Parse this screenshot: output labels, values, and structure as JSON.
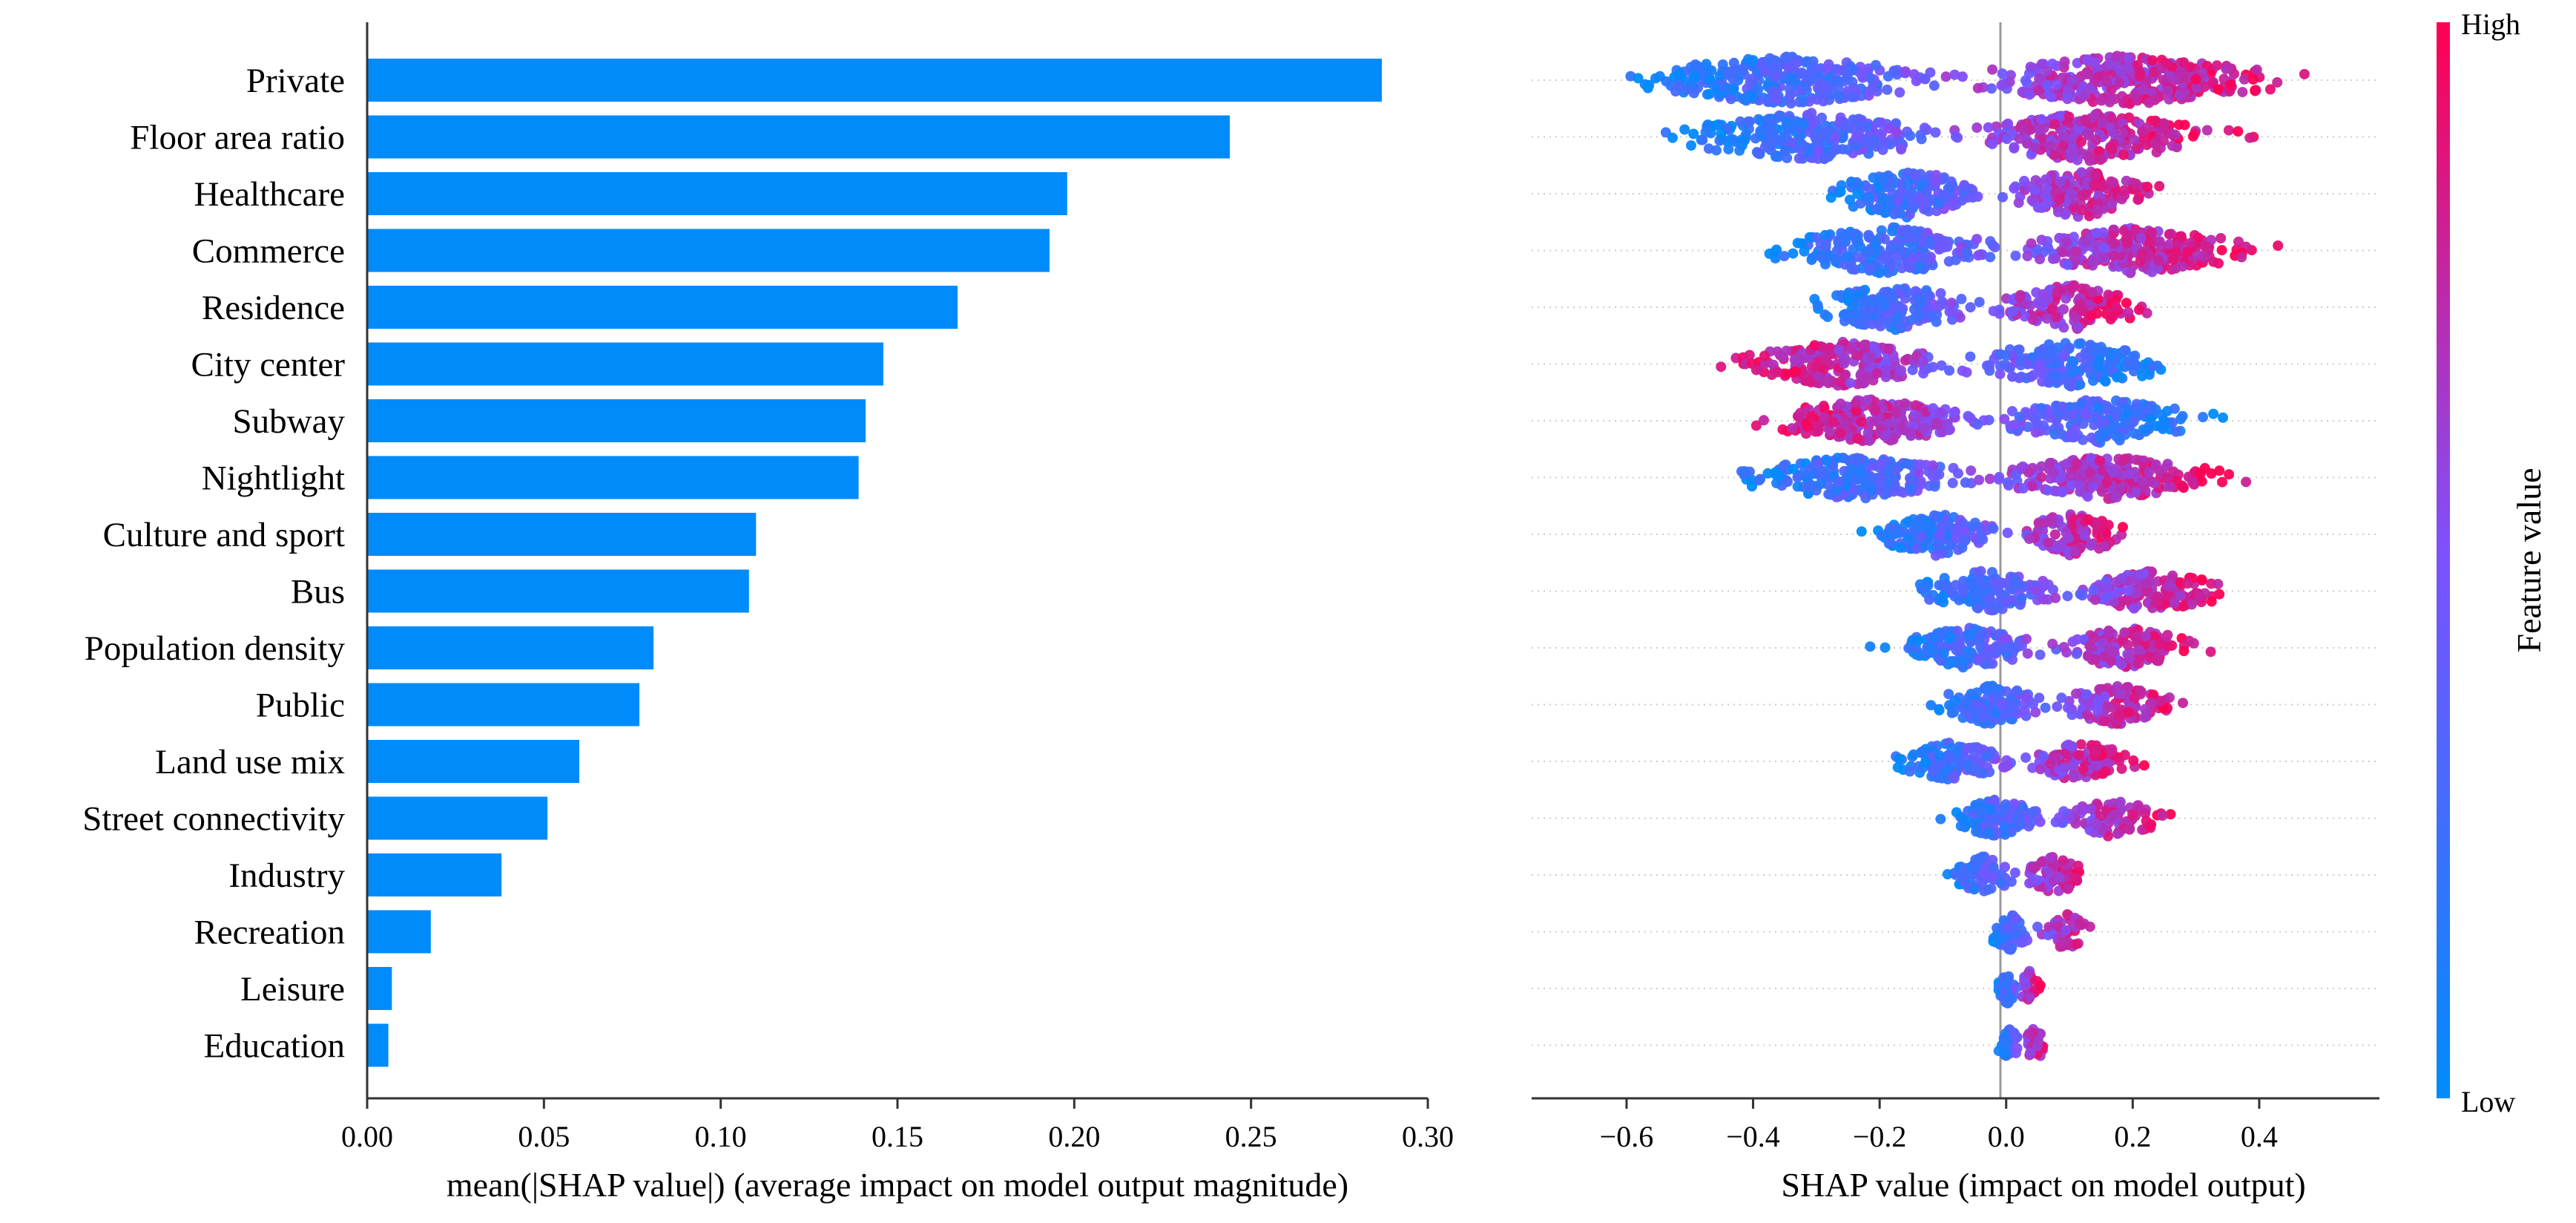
{
  "chart_data": [
    {
      "type": "bar",
      "orientation": "horizontal",
      "categories": [
        "Private",
        "Floor area ratio",
        "Healthcare",
        "Commerce",
        "Residence",
        "City center",
        "Subway",
        "Nightlight",
        "Culture and sport",
        "Bus",
        "Population density",
        "Public",
        "Land use mix",
        "Street connectivity",
        "Industry",
        "Recreation",
        "Leisure",
        "Education"
      ],
      "values": [
        0.287,
        0.244,
        0.198,
        0.193,
        0.167,
        0.146,
        0.141,
        0.139,
        0.11,
        0.108,
        0.081,
        0.077,
        0.06,
        0.051,
        0.038,
        0.018,
        0.007,
        0.006
      ],
      "xlabel": "mean(|SHAP value|) (average impact on model output magnitude)",
      "xlim": [
        0,
        0.3
      ],
      "xticks": [
        "0.00",
        "0.05",
        "0.10",
        "0.15",
        "0.20",
        "0.25",
        "0.30"
      ],
      "color": "#008bfb",
      "grid": false
    },
    {
      "type": "scatter",
      "style": "beeswarm",
      "categories": [
        "Private",
        "Floor area ratio",
        "Healthcare",
        "Commerce",
        "Residence",
        "City center",
        "Subway",
        "Nightlight",
        "Culture and sport",
        "Bus",
        "Population density",
        "Public",
        "Land use mix",
        "Street connectivity",
        "Industry",
        "Recreation",
        "Leisure",
        "Education"
      ],
      "xlabel": "SHAP value (impact on model output)",
      "xlim": [
        -0.75,
        0.59
      ],
      "xticks": [
        "−0.6",
        "−0.4",
        "−0.2",
        "0.0",
        "0.2",
        "0.4"
      ],
      "xtick_values": [
        -0.6,
        -0.4,
        -0.2,
        0.0,
        0.2,
        0.4
      ],
      "ranges": [
        [
          -0.69,
          0.53
        ],
        [
          -0.6,
          0.41
        ],
        [
          -0.33,
          0.29
        ],
        [
          -0.44,
          0.46
        ],
        [
          -0.35,
          0.27
        ],
        [
          -0.49,
          0.33
        ],
        [
          -0.44,
          0.38
        ],
        [
          -0.49,
          0.41
        ],
        [
          -0.25,
          0.24
        ],
        [
          -0.2,
          0.4
        ],
        [
          -0.22,
          0.35
        ],
        [
          -0.15,
          0.3
        ],
        [
          -0.21,
          0.24
        ],
        [
          -0.13,
          0.28
        ],
        [
          -0.11,
          0.15
        ],
        [
          -0.05,
          0.15
        ],
        [
          -0.02,
          0.06
        ],
        [
          -0.02,
          0.07
        ]
      ],
      "colorbar": {
        "label": "Feature value",
        "high_label": "High",
        "low_label": "Low",
        "low_color": "#008bfb",
        "high_color": "#ff0051"
      }
    }
  ]
}
